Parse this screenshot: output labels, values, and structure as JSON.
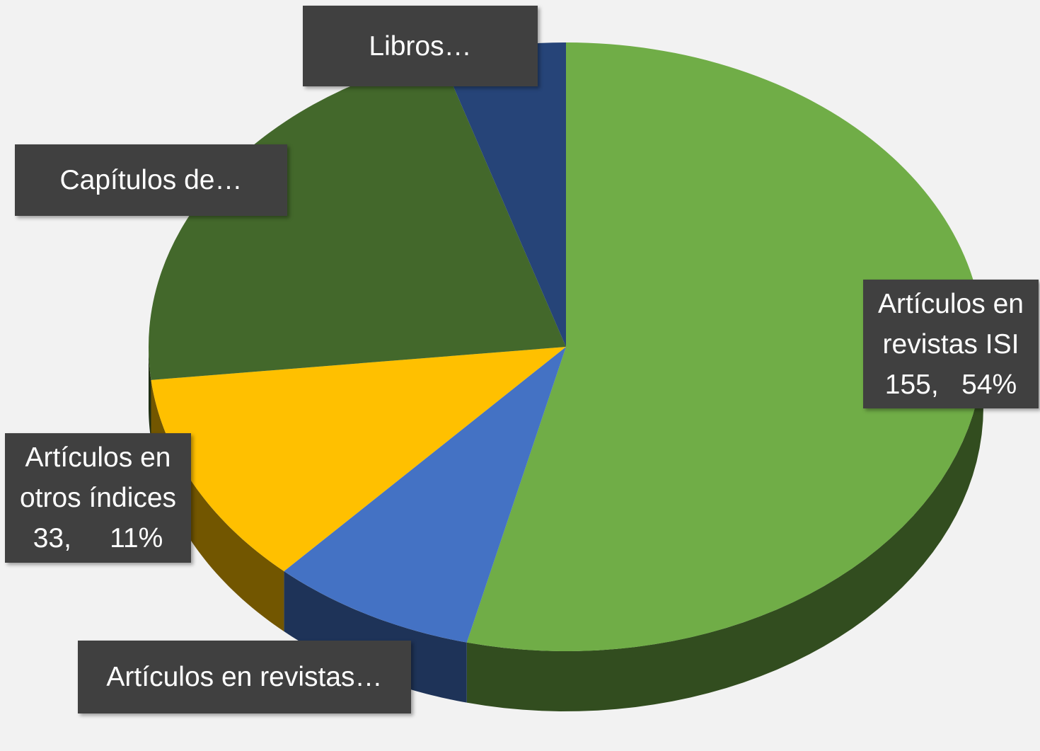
{
  "chart_data": {
    "type": "pie",
    "categories": [
      "Artículos en revistas ISI",
      "Artículos en revistas…",
      "Artículos en otros índices",
      "Capítulos de…",
      "Libros…"
    ],
    "values": [
      155,
      23,
      33,
      63,
      14
    ],
    "value_labels": [
      "155,   54%",
      null,
      "33,     11%",
      null,
      null
    ],
    "colors": [
      "#70ad47",
      "#4472c4",
      "#ffc000",
      "#43682b",
      "#264478"
    ]
  }
}
